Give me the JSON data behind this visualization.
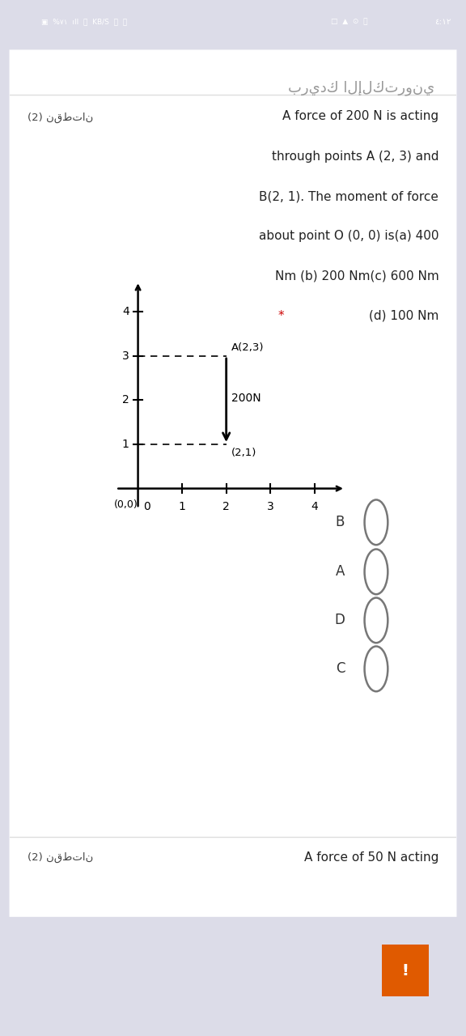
{
  "status_bar_bg": "#2b2b2b",
  "page_bg": "#dcdce8",
  "card_bg": "#ffffff",
  "arabic_header": "بريدك الإلكتروني",
  "question_label": "(2) نقطتان",
  "q_line1": "A force of 200 N is acting",
  "q_line2": "through points A (2, 3) and",
  "q_line3": "B(2, 1). The moment of force",
  "q_line4": "about point O (0, 0) is(a) 400",
  "q_line5": "Nm (b) 200 Nm(c) 600 Nm",
  "q_line6_star": "* (d) 100 Nm",
  "star_color": "#cc0000",
  "plot_bg": "#a8a898",
  "point_A": [
    2,
    3
  ],
  "point_B": [
    2,
    1
  ],
  "force_label": "200N",
  "A_label": "A(2,3)",
  "B_label": "(2,1)",
  "O_label": "(0,0)",
  "choices": [
    "B",
    "A",
    "D",
    "C"
  ],
  "bottom_label": "(2) نقطتان",
  "bottom_text": "A force of 50 N acting",
  "exclaim_bg": "#e05a00"
}
